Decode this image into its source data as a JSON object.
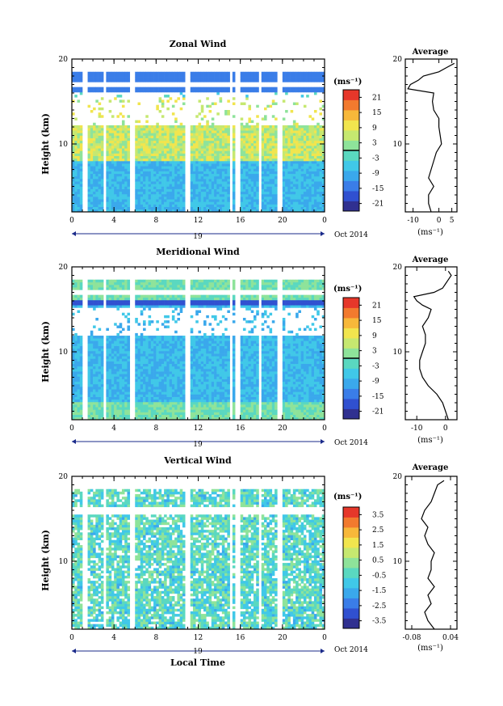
{
  "colors": {
    "axis": "#000000",
    "colormap": [
      "#303090",
      "#3050d0",
      "#3a7de8",
      "#3aa8ec",
      "#40c8e8",
      "#5ad8c0",
      "#8ee39a",
      "#c6e870",
      "#f1e54e",
      "#f7b83a",
      "#f27a2e",
      "#e6372a"
    ]
  },
  "chart_data": [
    {
      "type": "heatmap",
      "panel": "zonal",
      "title": "Zonal Wind",
      "ylabel": "Height (km)",
      "xlabel": "",
      "x_ticks": [
        "0",
        "4",
        "8",
        "12",
        "16",
        "20",
        "0"
      ],
      "y_ticks": [
        "10",
        "20"
      ],
      "ylim": [
        2,
        20
      ],
      "xlim": [
        0,
        24
      ],
      "date_label": "19",
      "month_label": "Oct 2014",
      "colorbar": {
        "unit": "(ms⁻¹)",
        "ticks": [
          "21",
          "15",
          "9",
          "3",
          "-3",
          "-9",
          "-15",
          "-21"
        ],
        "range": [
          -24,
          24
        ],
        "zero_line": true
      },
      "data_gaps": [
        [
          1.1,
          1.5
        ],
        [
          2.9,
          3.3
        ],
        [
          5.6,
          6.0
        ],
        [
          10.7,
          11.2
        ],
        [
          15.0,
          15.3
        ],
        [
          15.6,
          16.0
        ],
        [
          17.7,
          18.1
        ],
        [
          19.6,
          20.0
        ]
      ],
      "average": {
        "title": "Average",
        "xlabel": "(ms⁻¹)",
        "x_ticks": [
          "-10",
          "0",
          "5"
        ],
        "xlim": [
          -13,
          7
        ],
        "y_ticks": [
          "10",
          "20"
        ],
        "height": [
          2,
          3,
          4,
          5,
          6,
          7,
          8,
          9,
          10,
          11,
          12,
          13,
          14,
          15,
          16,
          16.5,
          17,
          17.5,
          18,
          18.5,
          19,
          19.5
        ],
        "value": [
          -3,
          -4,
          -4,
          -2,
          -4,
          -3,
          -2,
          -1,
          1,
          0.5,
          0,
          0,
          -2,
          -2.5,
          -2,
          -12,
          -11,
          -8,
          -6,
          0,
          3,
          6
        ]
      }
    },
    {
      "type": "heatmap",
      "panel": "meridional",
      "title": "Meridional Wind",
      "ylabel": "Height (km)",
      "xlabel": "",
      "x_ticks": [
        "0",
        "4",
        "8",
        "12",
        "16",
        "20",
        "0"
      ],
      "y_ticks": [
        "10",
        "20"
      ],
      "ylim": [
        2,
        20
      ],
      "xlim": [
        0,
        24
      ],
      "date_label": "19",
      "month_label": "Oct 2014",
      "colorbar": {
        "unit": "(ms⁻¹)",
        "ticks": [
          "21",
          "15",
          "9",
          "3",
          "-3",
          "-9",
          "-15",
          "-21"
        ],
        "range": [
          -24,
          24
        ],
        "zero_line": true
      },
      "data_gaps": [
        [
          1.1,
          1.5
        ],
        [
          2.9,
          3.3
        ],
        [
          5.6,
          6.0
        ],
        [
          10.7,
          11.2
        ],
        [
          15.0,
          15.3
        ],
        [
          15.6,
          16.0
        ],
        [
          17.7,
          18.1
        ],
        [
          19.6,
          20.0
        ]
      ],
      "average": {
        "title": "Average",
        "xlabel": "(ms⁻¹)",
        "x_ticks": [
          "-10",
          "0"
        ],
        "xlim": [
          -14,
          4
        ],
        "y_ticks": [
          "10",
          "20"
        ],
        "height": [
          2,
          3,
          4,
          5,
          6,
          7,
          8,
          9,
          10,
          11,
          12,
          13,
          14,
          15,
          15.5,
          16,
          16.5,
          17,
          17.5,
          18,
          18.5,
          19,
          19.5
        ],
        "value": [
          1,
          0,
          -1,
          -3,
          -6,
          -8,
          -9,
          -9,
          -8,
          -7,
          -7,
          -8,
          -6,
          -5,
          -8,
          -10,
          -11,
          -4,
          -1,
          0,
          1,
          2,
          1
        ]
      }
    },
    {
      "type": "heatmap",
      "panel": "vertical",
      "title": "Vertical Wind",
      "ylabel": "Height (km)",
      "xlabel": "Local Time",
      "x_ticks": [
        "0",
        "4",
        "8",
        "12",
        "16",
        "20",
        "0"
      ],
      "y_ticks": [
        "10",
        "20"
      ],
      "ylim": [
        2,
        20
      ],
      "xlim": [
        0,
        24
      ],
      "date_label": "19",
      "month_label": "Oct 2014",
      "colorbar": {
        "unit": "(ms⁻¹)",
        "ticks": [
          "3.5",
          "2.5",
          "1.5",
          "0.5",
          "-0.5",
          "-1.5",
          "-2.5",
          "-3.5"
        ],
        "range": [
          -4,
          4
        ],
        "zero_line": false
      },
      "data_gaps": [
        [
          1.1,
          1.5
        ],
        [
          2.9,
          3.3
        ],
        [
          5.6,
          6.0
        ],
        [
          10.7,
          11.2
        ],
        [
          15.0,
          15.3
        ],
        [
          15.6,
          16.0
        ],
        [
          17.7,
          18.1
        ],
        [
          19.6,
          20.0
        ]
      ],
      "average": {
        "title": "Average",
        "xlabel": "(ms⁻¹)",
        "x_ticks": [
          "-0.08",
          "0.04"
        ],
        "xlim": [
          -0.1,
          0.06
        ],
        "y_ticks": [
          "10",
          "20"
        ],
        "height": [
          2,
          3,
          4,
          5,
          6,
          7,
          8,
          9,
          10,
          11,
          12,
          13,
          14,
          15,
          16,
          17,
          18,
          19,
          19.5
        ],
        "value": [
          -0.01,
          -0.03,
          -0.04,
          -0.02,
          -0.03,
          -0.01,
          -0.03,
          -0.02,
          -0.02,
          -0.01,
          -0.03,
          -0.04,
          -0.03,
          -0.05,
          -0.04,
          -0.02,
          -0.01,
          0.0,
          0.02
        ]
      }
    }
  ]
}
